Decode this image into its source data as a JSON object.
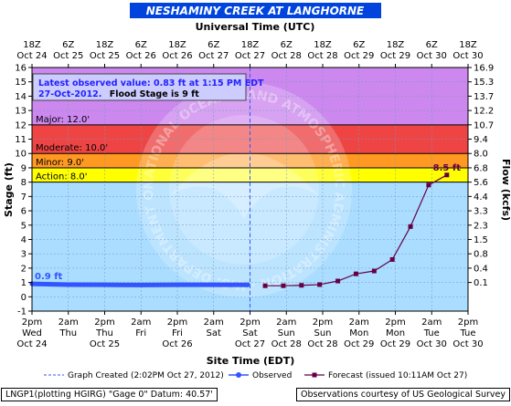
{
  "title": "NESHAMINY CREEK AT LANGHORNE",
  "top_axis_title": "Universal Time (UTC)",
  "top_ticks": [
    {
      "t": "18Z",
      "d": "Oct 24"
    },
    {
      "t": "6Z",
      "d": "Oct 25"
    },
    {
      "t": "18Z",
      "d": "Oct 25"
    },
    {
      "t": "6Z",
      "d": "Oct 26"
    },
    {
      "t": "18Z",
      "d": "Oct 26"
    },
    {
      "t": "6Z",
      "d": "Oct 27"
    },
    {
      "t": "18Z",
      "d": "Oct 27"
    },
    {
      "t": "6Z",
      "d": "Oct 28"
    },
    {
      "t": "18Z",
      "d": "Oct 28"
    },
    {
      "t": "6Z",
      "d": "Oct 29"
    },
    {
      "t": "18Z",
      "d": "Oct 29"
    },
    {
      "t": "6Z",
      "d": "Oct 30"
    },
    {
      "t": "18Z",
      "d": "Oct 30"
    }
  ],
  "bottom_ticks": [
    {
      "t": "2pm",
      "d": "Wed"
    },
    {
      "t": "2am",
      "d": "Thu"
    },
    {
      "t": "2pm",
      "d": "Thu"
    },
    {
      "t": "2am",
      "d": "Fri"
    },
    {
      "t": "2pm",
      "d": "Fri"
    },
    {
      "t": "2am",
      "d": "Sat"
    },
    {
      "t": "2pm",
      "d": "Sat"
    },
    {
      "t": "2am",
      "d": "Sun"
    },
    {
      "t": "2pm",
      "d": "Sun"
    },
    {
      "t": "2am",
      "d": "Mon"
    },
    {
      "t": "2pm",
      "d": "Mon"
    },
    {
      "t": "2am",
      "d": "Tue"
    },
    {
      "t": "2pm",
      "d": "Tue"
    }
  ],
  "bottom_dates": [
    {
      "at": 0,
      "d": "Oct 24"
    },
    {
      "at": 2,
      "d": "Oct 25"
    },
    {
      "at": 4,
      "d": "Oct 26"
    },
    {
      "at": 6,
      "d": "Oct 27"
    },
    {
      "at": 7,
      "d": "Oct 28"
    },
    {
      "at": 8,
      "d": "Oct 28"
    },
    {
      "at": 9,
      "d": "Oct 29"
    },
    {
      "at": 10,
      "d": "Oct 29"
    },
    {
      "at": 11,
      "d": "Oct 30"
    },
    {
      "at": 12,
      "d": "Oct 30"
    }
  ],
  "info_line1": "Latest observed value: 0.83 ft at 1:15 PM EDT",
  "info_date": "27-Oct-2012.",
  "info_flood": "Flood Stage is 9 ft",
  "watermark": "NATIONAL OCEANIC AND ATMOSPHERIC ADMINISTRATION · U.S. DEPARTMENT OF COMMERCE · NOAA",
  "legend": {
    "created": "Graph Created (2:02PM Oct 27, 2012)",
    "observed": "Observed",
    "forecast": "Forecast (issued 10:11AM Oct 27)"
  },
  "footer_left": "LNGP1(plotting HGIRG) \"Gage 0\" Datum: 40.57'",
  "footer_right": "Observations courtesy of US Geological Survey",
  "chart_data": {
    "type": "line",
    "ylabel": "Stage (ft)",
    "y2label": "Flow (kcfs)",
    "xlabel": "Site Time (EDT)",
    "ylim": [
      -1,
      16
    ],
    "y_ticks": [
      -1,
      0,
      1,
      2,
      3,
      4,
      5,
      6,
      7,
      8,
      9,
      10,
      11,
      12,
      13,
      14,
      15,
      16
    ],
    "y2_ticks": [
      {
        "at": 16,
        "label": "16.9"
      },
      {
        "at": 15,
        "label": "15.3"
      },
      {
        "at": 14,
        "label": "13.7"
      },
      {
        "at": 13,
        "label": "12.2"
      },
      {
        "at": 12,
        "label": "10.7"
      },
      {
        "at": 11,
        "label": "9.4"
      },
      {
        "at": 10,
        "label": "8.0"
      },
      {
        "at": 9,
        "label": "6.8"
      },
      {
        "at": 8,
        "label": "5.6"
      },
      {
        "at": 7,
        "label": "4.4"
      },
      {
        "at": 6,
        "label": "3.3"
      },
      {
        "at": 5,
        "label": "2.3"
      },
      {
        "at": 4,
        "label": "1.5"
      },
      {
        "at": 3,
        "label": "0.8"
      },
      {
        "at": 2,
        "label": "0.4"
      },
      {
        "at": 1,
        "label": "0.1"
      }
    ],
    "x_range_hours": [
      0,
      144
    ],
    "x_unit": "hours from 2pm Wed Oct 24 (EDT)",
    "bands": [
      {
        "name": "Major",
        "label": "Major: 12.0'",
        "from": 12,
        "to": 16,
        "color": "#cc88ee"
      },
      {
        "name": "Moderate",
        "label": "Moderate: 10.0'",
        "from": 10,
        "to": 12,
        "color": "#ee4444"
      },
      {
        "name": "Minor",
        "label": "Minor: 9.0'",
        "from": 9,
        "to": 10,
        "color": "#ff9922"
      },
      {
        "name": "Action",
        "label": "Action: 8.0'",
        "from": 8,
        "to": 9,
        "color": "#ffff00"
      }
    ],
    "observed": {
      "name": "Observed",
      "color": "#3355ff",
      "start_label": "0.9 ft",
      "x_hours": [
        0,
        12,
        24,
        36,
        48,
        60,
        71.25
      ],
      "values": [
        0.9,
        0.85,
        0.84,
        0.82,
        0.84,
        0.84,
        0.83
      ]
    },
    "forecast": {
      "name": "Forecast",
      "color": "#660044",
      "end_label": "8.5 ft",
      "x_hours": [
        77,
        83,
        89,
        95,
        101,
        107,
        113,
        119,
        125,
        131,
        137
      ],
      "values": [
        0.77,
        0.77,
        0.8,
        0.85,
        1.1,
        1.6,
        1.8,
        2.6,
        4.9,
        7.8,
        8.5
      ]
    },
    "graph_created_hours": 72,
    "colors": {
      "background": "#aaddff",
      "grid": "#7799bb",
      "title_bar": "#0044dd",
      "title_text": "#ffffff"
    }
  }
}
